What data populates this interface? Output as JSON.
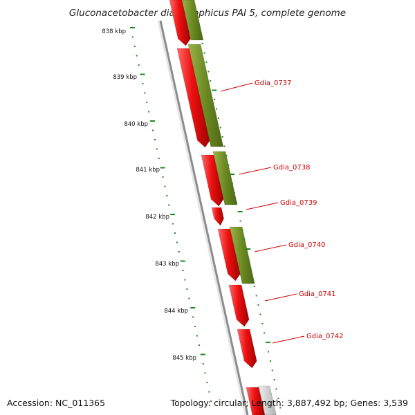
{
  "title": "Gluconacetobacter diazotrophicus PAI 5, complete genome",
  "footer": {
    "accession": "Accession: NC_011365",
    "stats": "Topology: circular; Length: 3,887,492 bp; Genes: 3,539"
  },
  "ruler": {
    "labels": [
      "838 kbp",
      "839 kbp",
      "840 kbp",
      "841 kbp",
      "842 kbp",
      "843 kbp",
      "844 kbp",
      "845 kbp"
    ]
  },
  "genes": {
    "labels": [
      "Gdia_0737",
      "Gdia_0738",
      "Gdia_0739",
      "Gdia_0740",
      "Gdia_0741",
      "Gdia_0742"
    ]
  },
  "colors": {
    "forward_feature": "#ee1111",
    "cds_feature": "#6b8a22",
    "label_red": "#cc0000",
    "axis_green": "#1a8a1a",
    "backbone_grey": "#8c8c8c"
  }
}
